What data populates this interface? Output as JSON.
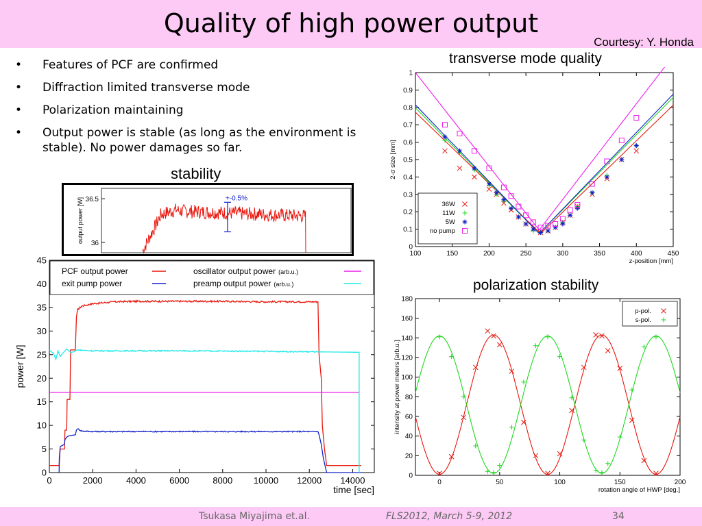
{
  "slide": {
    "title": "Quality of high power output",
    "courtesy": "Courtesy: Y. Honda",
    "bullets": [
      "Features of PCF are confirmed",
      "Diffraction limited transverse mode",
      "Polarization maintaining",
      "Output power is stable (as long as the environment is stable). No power damages so far."
    ],
    "bullet_glyph": "•",
    "captions": {
      "stability": "stability",
      "transverse": "transverse mode quality",
      "polarization": "polarization stability"
    },
    "footer": {
      "author": "Tsukasa Miyajima et.al.",
      "conference": "FLS2012, March 5-9, 2012",
      "page": "34"
    },
    "colors": {
      "header": "#fccaf4",
      "red": "#e8160c",
      "green": "#1ed81e",
      "blue": "#1020c8",
      "magenta": "#ec1eec",
      "cyan": "#1ee8e8"
    }
  },
  "chart_data": [
    {
      "type": "line",
      "xlabel": "time [sec]",
      "ylabel": "power [W]",
      "xlim": [
        0,
        15000
      ],
      "ylim": [
        0,
        45
      ],
      "xticks": [
        0,
        2000,
        4000,
        6000,
        8000,
        10000,
        12000,
        14000
      ],
      "yticks": [
        0,
        5,
        10,
        15,
        20,
        25,
        30,
        35,
        40,
        45
      ],
      "legend": [
        {
          "label": "PCF output power",
          "suffix": ""
        },
        {
          "label": "exit pump power",
          "suffix": ""
        },
        {
          "label": "oscillator output power",
          "suffix": "(arb.u.)"
        },
        {
          "label": "preamp  output power",
          "suffix": "(arb.u.)"
        }
      ],
      "series": [
        {
          "name": "PCF output power",
          "x": [
            0,
            450,
            500,
            700,
            720,
            800,
            820,
            950,
            980,
            1200,
            1250,
            1300,
            1500,
            2000,
            2500,
            3000,
            4000,
            6000,
            8000,
            10000,
            12000,
            12400,
            12450,
            12550,
            12600,
            12700,
            12800,
            14000,
            14400
          ],
          "y": [
            1.5,
            1.5,
            5,
            5,
            9,
            9,
            15.5,
            15.5,
            26,
            26,
            33,
            34.5,
            35.3,
            35.8,
            36,
            36.2,
            36.3,
            36.3,
            36.3,
            36.2,
            36.2,
            36.2,
            25,
            20,
            10,
            5,
            1.5,
            1.5,
            1.5
          ]
        },
        {
          "name": "exit pump power",
          "x": [
            450,
            460,
            500,
            700,
            720,
            800,
            900,
            1200,
            1250,
            1300,
            1500,
            2000,
            4000,
            6000,
            8000,
            10000,
            12000,
            12400,
            12450,
            12550,
            12650,
            12750,
            12800,
            14000,
            14400
          ],
          "y": [
            0,
            3,
            5.5,
            6,
            7,
            7.5,
            7.8,
            8,
            9,
            9.3,
            8.8,
            8.7,
            8.7,
            8.7,
            8.7,
            8.7,
            8.7,
            8.7,
            8,
            6,
            3,
            1,
            0,
            0,
            0
          ]
        },
        {
          "name": "oscillator output power",
          "x": [
            0,
            14300
          ],
          "y": [
            17,
            17
          ]
        },
        {
          "name": "preamp  output power",
          "x": [
            0,
            200,
            300,
            400,
            500,
            600,
            800,
            1000,
            1300,
            2000,
            6000,
            10000,
            12000,
            14300,
            14300
          ],
          "y": [
            26,
            25.2,
            24,
            25.8,
            24.6,
            25.2,
            26.2,
            25.4,
            26,
            25.8,
            25.8,
            25.7,
            25.6,
            25.5,
            0
          ]
        }
      ],
      "inset": {
        "title": "stability",
        "ylabel": "output power [W]",
        "yticks": [
          36,
          36.5
        ],
        "annotation": "+-0.5%"
      }
    },
    {
      "type": "scatter",
      "xlabel": "z-position [mm]",
      "ylabel": "2-σ size [mm]",
      "xlim": [
        100,
        450
      ],
      "ylim": [
        0,
        1
      ],
      "xticks": [
        100,
        150,
        200,
        250,
        300,
        350,
        400,
        450
      ],
      "yticks": [
        0,
        0.1,
        0.2,
        0.3,
        0.4,
        0.5,
        0.6,
        0.7,
        0.8,
        0.9,
        1
      ],
      "legend": [
        "36W",
        "11W",
        "5W",
        "no pump"
      ],
      "series": [
        {
          "name": "36W",
          "x": [
            140,
            160,
            180,
            200,
            210,
            220,
            230,
            240,
            250,
            260,
            270,
            280,
            290,
            300,
            310,
            320,
            340,
            360,
            380,
            400
          ],
          "y": [
            0.55,
            0.45,
            0.4,
            0.33,
            0.3,
            0.25,
            0.21,
            0.17,
            0.13,
            0.1,
            0.08,
            0.09,
            0.11,
            0.14,
            0.18,
            0.23,
            0.3,
            0.39,
            0.5,
            0.55
          ],
          "fit": {
            "vertex_x": 270,
            "vertex_y": 0.075,
            "slope_left": 0.0041,
            "slope_right": 0.0041
          }
        },
        {
          "name": "11W",
          "x": [
            140,
            160,
            180,
            200,
            210,
            220,
            230,
            240,
            250,
            260,
            270,
            280,
            290,
            300,
            310,
            320,
            340,
            360,
            380,
            400
          ],
          "y": [
            0.61,
            0.54,
            0.44,
            0.35,
            0.3,
            0.26,
            0.22,
            0.17,
            0.13,
            0.09,
            0.08,
            0.09,
            0.11,
            0.14,
            0.18,
            0.23,
            0.31,
            0.41,
            0.5,
            0.58
          ],
          "fit": {
            "vertex_x": 268,
            "vertex_y": 0.075,
            "slope_left": 0.0043,
            "slope_right": 0.0043
          }
        },
        {
          "name": "5W",
          "x": [
            140,
            160,
            180,
            200,
            210,
            220,
            230,
            240,
            250,
            260,
            270,
            280,
            290,
            300,
            310,
            320,
            340,
            360,
            380,
            400
          ],
          "y": [
            0.63,
            0.55,
            0.45,
            0.36,
            0.31,
            0.27,
            0.22,
            0.17,
            0.13,
            0.1,
            0.08,
            0.09,
            0.11,
            0.13,
            0.18,
            0.22,
            0.31,
            0.4,
            0.5,
            0.58
          ],
          "fit": {
            "vertex_x": 268,
            "vertex_y": 0.075,
            "slope_left": 0.0044,
            "slope_right": 0.0044
          }
        },
        {
          "name": "no pump",
          "x": [
            140,
            160,
            180,
            200,
            220,
            230,
            240,
            250,
            260,
            270,
            280,
            290,
            300,
            310,
            320,
            340,
            360,
            380,
            400
          ],
          "y": [
            0.7,
            0.65,
            0.55,
            0.45,
            0.34,
            0.29,
            0.23,
            0.18,
            0.14,
            0.11,
            0.12,
            0.13,
            0.16,
            0.21,
            0.24,
            0.36,
            0.49,
            0.61,
            0.74
          ],
          "fit": {
            "vertex_x": 268,
            "vertex_y": 0.095,
            "slope_left": 0.0055,
            "slope_right": 0.0055
          }
        }
      ]
    },
    {
      "type": "scatter",
      "xlabel": "rotation angle of HWP [deg.]",
      "ylabel": "intensity at power meters [arb.u.]",
      "xlim": [
        -20,
        200
      ],
      "ylim": [
        0,
        180
      ],
      "xticks": [
        0,
        50,
        100,
        150,
        200
      ],
      "yticks": [
        0,
        20,
        40,
        60,
        80,
        100,
        120,
        140,
        160,
        180
      ],
      "legend": [
        "p-pol.",
        "s-pol."
      ],
      "series": [
        {
          "name": "p-pol.",
          "x": [
            0,
            10,
            20,
            30,
            40,
            45,
            50,
            60,
            70,
            80,
            90,
            100,
            110,
            120,
            130,
            135,
            140,
            150,
            160,
            170,
            180
          ],
          "y": [
            2,
            19,
            59,
            110,
            147,
            142,
            133,
            106,
            54,
            20,
            2,
            22,
            66,
            110,
            143,
            142,
            127,
            109,
            56,
            15,
            2
          ],
          "fit": {
            "amplitude": 71,
            "offset": 72,
            "period": 90,
            "peak_at": 45
          }
        },
        {
          "name": "s-pol.",
          "x": [
            0,
            10,
            20,
            30,
            40,
            45,
            50,
            60,
            70,
            80,
            90,
            100,
            110,
            120,
            130,
            135,
            140,
            150,
            160,
            170,
            180
          ],
          "y": [
            141,
            121,
            80,
            30,
            4,
            3,
            10,
            49,
            95,
            132,
            141,
            121,
            79,
            36,
            5,
            3,
            12,
            39,
            87,
            131,
            141
          ],
          "fit": {
            "amplitude": 70,
            "offset": 72,
            "period": 90,
            "peak_at": 0
          }
        }
      ]
    }
  ]
}
